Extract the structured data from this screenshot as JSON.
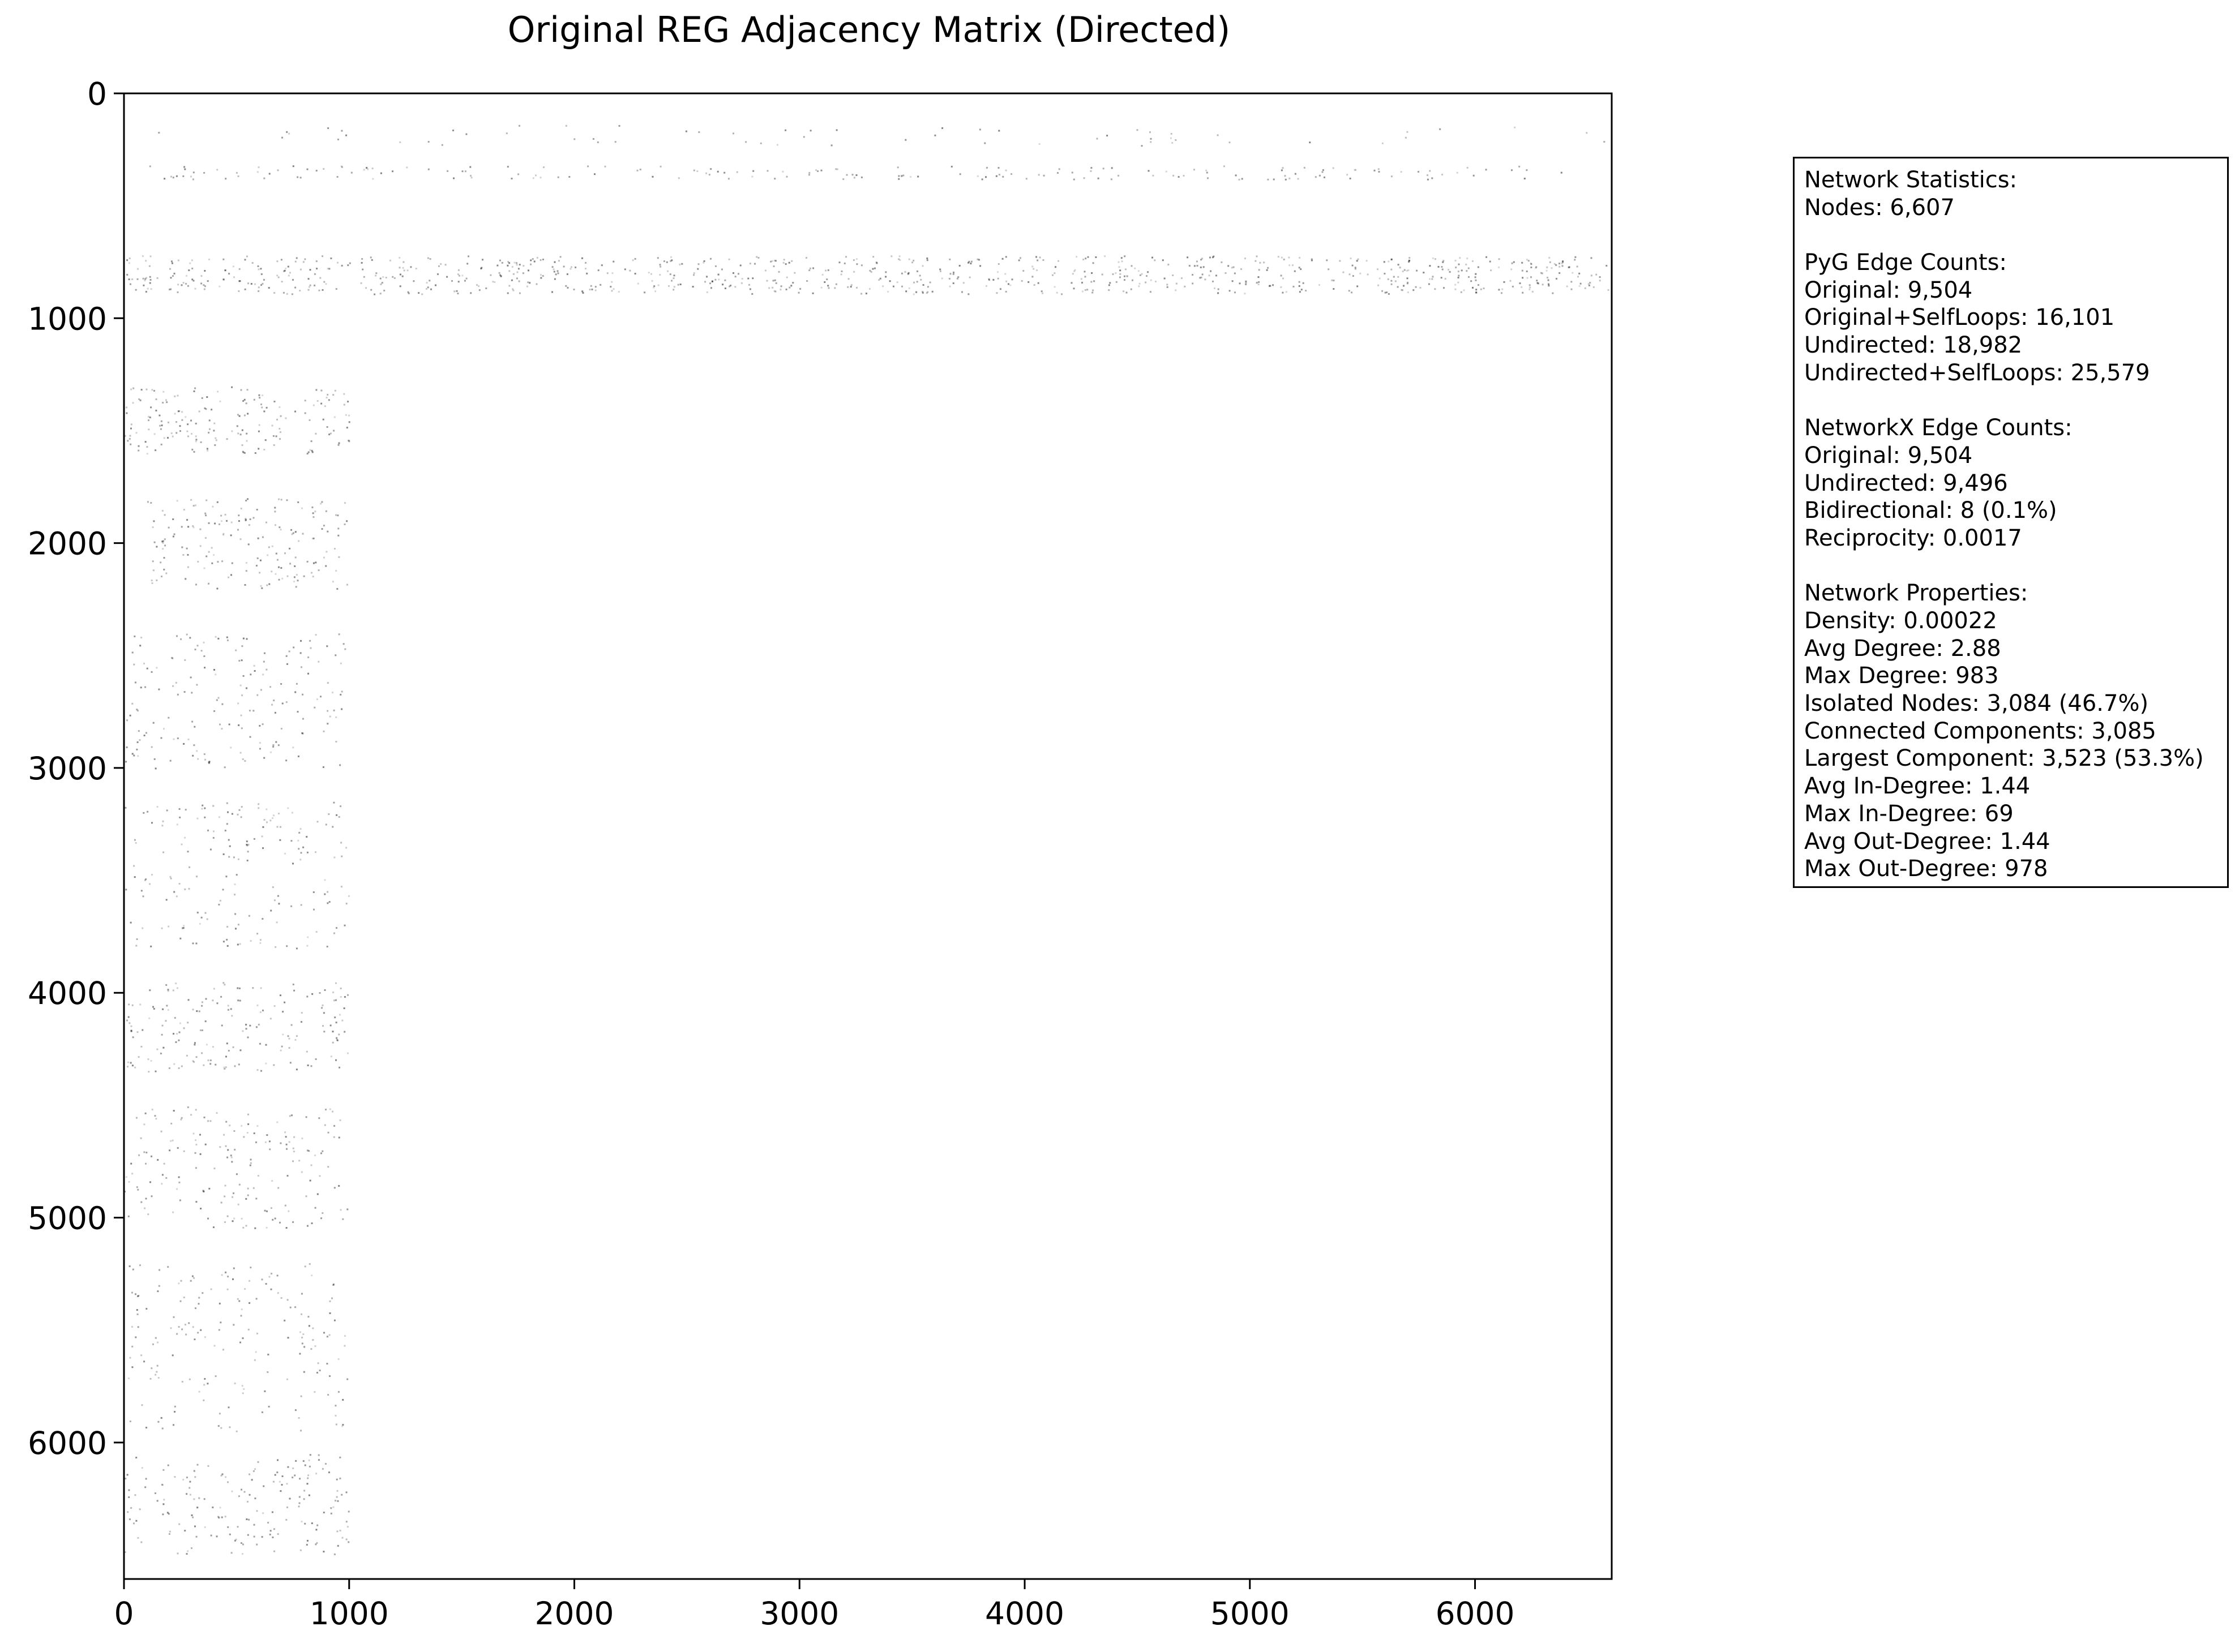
{
  "chart_data": {
    "type": "heatmap",
    "title": "Original REG Adjacency Matrix (Directed)",
    "xlabel": "",
    "ylabel": "",
    "xlim": [
      0,
      6607
    ],
    "ylim": [
      6607,
      0
    ],
    "x_ticks": [
      0,
      1000,
      2000,
      3000,
      4000,
      5000,
      6000
    ],
    "y_ticks": [
      0,
      1000,
      2000,
      3000,
      4000,
      5000,
      6000
    ],
    "matrix_size": 6607,
    "colors": {
      "background": "#ffffff",
      "edge": "#000000"
    },
    "nonzero_regions": [
      {
        "rows": [
          140,
          230
        ],
        "cols": [
          100,
          6600
        ],
        "density": "very sparse"
      },
      {
        "rows": [
          320,
          380
        ],
        "cols": [
          100,
          6450
        ],
        "density": "sparse"
      },
      {
        "rows": [
          720,
          890
        ],
        "cols": [
          0,
          6607
        ],
        "density": "dense band"
      },
      {
        "rows": [
          1300,
          1600
        ],
        "cols": [
          0,
          1000
        ],
        "density": "sparse"
      },
      {
        "rows": [
          1800,
          2200
        ],
        "cols": [
          100,
          1000
        ],
        "density": "sparse"
      },
      {
        "rows": [
          2400,
          3000
        ],
        "cols": [
          0,
          1000
        ],
        "density": "sparse"
      },
      {
        "rows": [
          3150,
          3800
        ],
        "cols": [
          0,
          1000
        ],
        "density": "sparse"
      },
      {
        "rows": [
          3950,
          4350
        ],
        "cols": [
          0,
          1000
        ],
        "density": "sparse"
      },
      {
        "rows": [
          4500,
          5050
        ],
        "cols": [
          0,
          1000
        ],
        "density": "sparse"
      },
      {
        "rows": [
          5200,
          5950
        ],
        "cols": [
          0,
          1000
        ],
        "density": "sparse"
      },
      {
        "rows": [
          6050,
          6500
        ],
        "cols": [
          0,
          1000
        ],
        "density": "sparse"
      }
    ]
  },
  "stats_box": {
    "lines": [
      "Network Statistics:",
      "Nodes: 6,607",
      "",
      "PyG Edge Counts:",
      "Original: 9,504",
      "Original+SelfLoops: 16,101",
      "Undirected: 18,982",
      "Undirected+SelfLoops: 25,579",
      "",
      "NetworkX Edge Counts:",
      "Original: 9,504",
      "Undirected: 9,496",
      "Bidirectional: 8 (0.1%)",
      "Reciprocity: 0.0017",
      "",
      "Network Properties:",
      "Density: 0.00022",
      "Avg Degree: 2.88",
      "Max Degree: 983",
      "Isolated Nodes: 3,084 (46.7%)",
      "Connected Components: 3,085",
      "Largest Component: 3,523 (53.3%)",
      "Avg In-Degree: 1.44",
      "Max In-Degree: 69",
      "Avg Out-Degree: 1.44",
      "Max Out-Degree: 978"
    ]
  }
}
